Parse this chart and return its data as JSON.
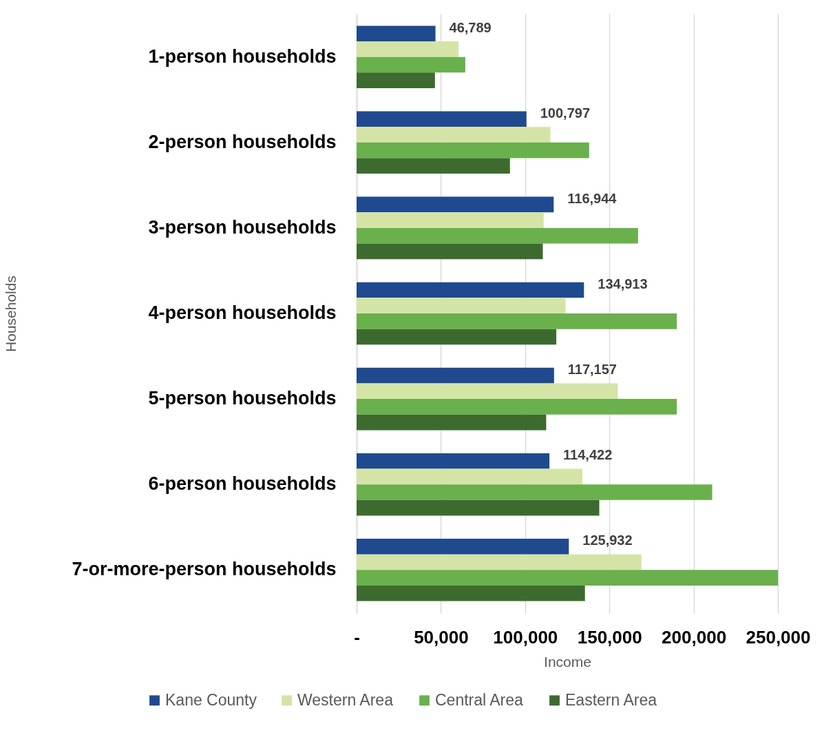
{
  "chart_data": {
    "type": "bar",
    "orientation": "horizontal",
    "xlabel": "Income",
    "ylabel": "Households",
    "categories": [
      "1-person households",
      "2-person households",
      "3-person households",
      "4-person households",
      "5-person households",
      "6-person households",
      "7-or-more-person households"
    ],
    "series": [
      {
        "name": "Kane County",
        "color": "#1f4a8f",
        "values": [
          46789,
          100797,
          116944,
          134913,
          117157,
          114422,
          125932
        ],
        "value_labels": [
          "46,789",
          "100,797",
          "116,944",
          "134,913",
          "117,157",
          "114,422",
          "125,932"
        ]
      },
      {
        "name": "Western Area",
        "color": "#d4e4a6",
        "values": [
          60500,
          115000,
          111000,
          124000,
          155000,
          134000,
          169000
        ]
      },
      {
        "name": "Central Area",
        "color": "#6ab04c",
        "values": [
          64500,
          138000,
          167000,
          190000,
          190000,
          211000,
          250000
        ]
      },
      {
        "name": "Eastern Area",
        "color": "#3d6b2f",
        "values": [
          46500,
          91000,
          110500,
          118500,
          112500,
          144000,
          135500
        ]
      }
    ],
    "xlim": [
      0,
      250000
    ],
    "xticks": [
      {
        "value": 0,
        "label": "-"
      },
      {
        "value": 50000,
        "label": "50,000"
      },
      {
        "value": 100000,
        "label": "100,000"
      },
      {
        "value": 150000,
        "label": "150,000"
      },
      {
        "value": 200000,
        "label": "200,000"
      },
      {
        "value": 250000,
        "label": "250,000"
      }
    ],
    "grid": "x",
    "legend": "bottom"
  }
}
